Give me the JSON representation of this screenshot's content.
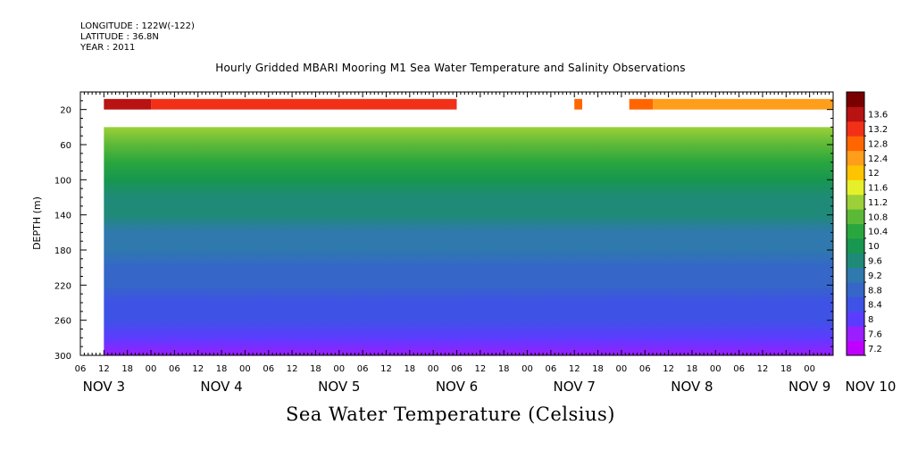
{
  "header": {
    "longitude": "LONGITUDE : 122W(-122)",
    "latitude": "LATITUDE : 36.8N",
    "year": "YEAR : 2011"
  },
  "chart_data": {
    "type": "heatmap",
    "title": "Hourly Gridded MBARI Mooring M1 Sea Water Temperature and Salinity Observations",
    "subtitle": "Sea Water Temperature (Celsius)",
    "ylabel": "DEPTH (m)",
    "xlabel": "",
    "x_range_hours": [
      0,
      192
    ],
    "ylim": [
      300,
      0
    ],
    "y_axis_inverted": true,
    "y_ticks": [
      20,
      60,
      100,
      140,
      180,
      220,
      260,
      300
    ],
    "x_hour_ticks": [
      {
        "t": 0,
        "label": "06"
      },
      {
        "t": 6,
        "label": "12"
      },
      {
        "t": 12,
        "label": "18"
      },
      {
        "t": 18,
        "label": "00"
      },
      {
        "t": 24,
        "label": "06"
      },
      {
        "t": 30,
        "label": "12"
      },
      {
        "t": 36,
        "label": "18"
      },
      {
        "t": 42,
        "label": "00"
      },
      {
        "t": 48,
        "label": "06"
      },
      {
        "t": 54,
        "label": "12"
      },
      {
        "t": 60,
        "label": "18"
      },
      {
        "t": 66,
        "label": "00"
      },
      {
        "t": 72,
        "label": "06"
      },
      {
        "t": 78,
        "label": "12"
      },
      {
        "t": 84,
        "label": "18"
      },
      {
        "t": 90,
        "label": "00"
      },
      {
        "t": 96,
        "label": "06"
      },
      {
        "t": 102,
        "label": "12"
      },
      {
        "t": 108,
        "label": "18"
      },
      {
        "t": 114,
        "label": "00"
      },
      {
        "t": 120,
        "label": "06"
      },
      {
        "t": 126,
        "label": "12"
      },
      {
        "t": 132,
        "label": "18"
      },
      {
        "t": 138,
        "label": "00"
      },
      {
        "t": 144,
        "label": "06"
      },
      {
        "t": 150,
        "label": "12"
      },
      {
        "t": 156,
        "label": "18"
      },
      {
        "t": 162,
        "label": "00"
      },
      {
        "t": 168,
        "label": "06"
      },
      {
        "t": 174,
        "label": "12"
      },
      {
        "t": 180,
        "label": "18"
      },
      {
        "t": 186,
        "label": "00"
      }
    ],
    "x_day_labels": [
      {
        "t": 6,
        "label": "NOV  3"
      },
      {
        "t": 36,
        "label": "NOV  4"
      },
      {
        "t": 66,
        "label": "NOV  5"
      },
      {
        "t": 96,
        "label": "NOV  6"
      },
      {
        "t": 126,
        "label": "NOV  7"
      },
      {
        "t": 156,
        "label": "NOV  8"
      },
      {
        "t": 186,
        "label": "NOV  9"
      },
      {
        "t": 204,
        "label": "NOV 10"
      }
    ],
    "colorbar": {
      "levels": [
        7.2,
        7.6,
        8,
        8.4,
        8.8,
        9.2,
        9.6,
        10,
        10.4,
        10.8,
        11.2,
        11.6,
        12,
        12.4,
        12.8,
        13.2,
        13.6
      ],
      "labels": [
        "7.2",
        "7.6",
        "8",
        "8.4",
        "8.8",
        "9.2",
        "9.6",
        "10",
        "10.4",
        "10.8",
        "11.2",
        "11.6",
        "12",
        "12.4",
        "12.8",
        "13.2",
        "13.6"
      ],
      "colors": [
        "#c000ff",
        "#9a1eff",
        "#5b3cff",
        "#3f52e6",
        "#3566c8",
        "#2f79ae",
        "#1f8a78",
        "#17974f",
        "#2aa63e",
        "#5cb938",
        "#9cd038",
        "#e6f02a",
        "#ffc400",
        "#ff9e1a",
        "#ff6600",
        "#f23018",
        "#b81212",
        "#7a0000"
      ]
    },
    "depth_profile": [
      {
        "depth": 40,
        "temp": 11.1
      },
      {
        "depth": 60,
        "temp": 10.6
      },
      {
        "depth": 80,
        "temp": 10.1
      },
      {
        "depth": 100,
        "temp": 9.8
      },
      {
        "depth": 120,
        "temp": 9.4
      },
      {
        "depth": 140,
        "temp": 9.2
      },
      {
        "depth": 160,
        "temp": 9.0
      },
      {
        "depth": 180,
        "temp": 8.8
      },
      {
        "depth": 200,
        "temp": 8.6
      },
      {
        "depth": 220,
        "temp": 8.4
      },
      {
        "depth": 240,
        "temp": 8.2
      },
      {
        "depth": 260,
        "temp": 8.0
      },
      {
        "depth": 280,
        "temp": 7.8
      },
      {
        "depth": 300,
        "temp": 7.5
      }
    ],
    "surface_series": {
      "depth_top": 10,
      "depth_bottom": 20,
      "segments": [
        {
          "t0": 6,
          "t1": 18,
          "temp": 13.2
        },
        {
          "t0": 18,
          "t1": 96,
          "temp": 12.8
        },
        {
          "t0": 126,
          "t1": 128,
          "temp": 12.4
        },
        {
          "t0": 140,
          "t1": 146,
          "temp": 12.4
        },
        {
          "t0": 146,
          "t1": 192,
          "temp": 12.0
        }
      ]
    },
    "data_start_hour": 6,
    "data_top_depth": 40
  }
}
